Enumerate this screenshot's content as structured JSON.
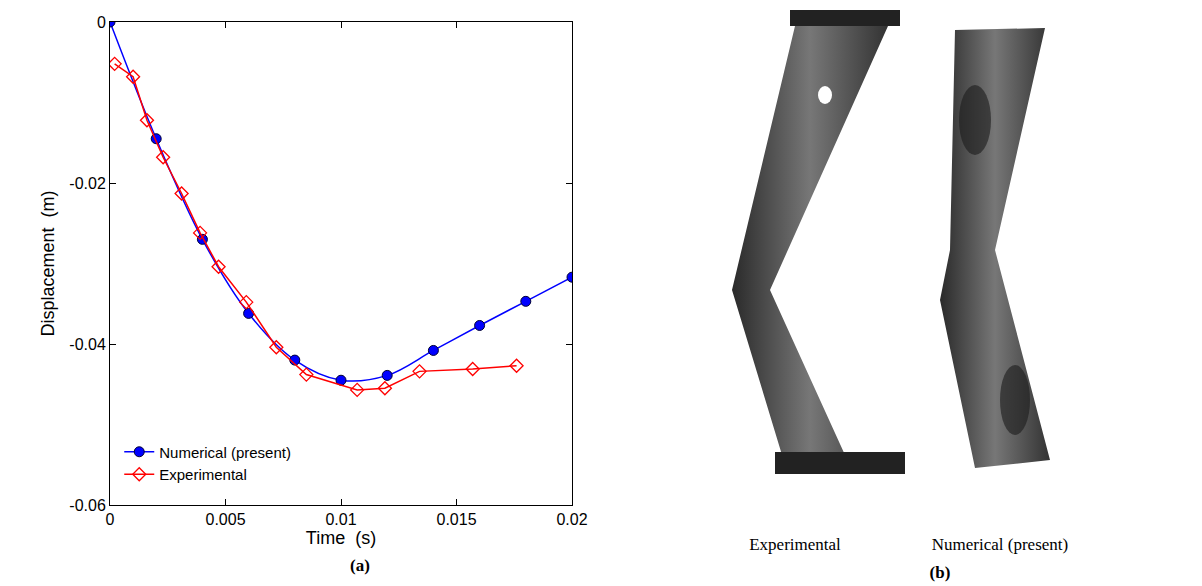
{
  "chart_data": {
    "type": "line",
    "x_label": "Time  (s)",
    "y_label": "Displacement  (m)",
    "xlim": [
      0,
      0.02
    ],
    "xticks": [
      0,
      0.005,
      0.01,
      0.015,
      0.02
    ],
    "ylim": [
      -0.06,
      0
    ],
    "yticks": [
      -0.06,
      -0.04,
      -0.02,
      0
    ],
    "grid": false,
    "legend": "lower left",
    "series": [
      {
        "name": "Numerical (present)",
        "color": "#0000ff",
        "marker": "circle",
        "line_style": "solid",
        "x": [
          0,
          0.002,
          0.004,
          0.006,
          0.008,
          0.01,
          0.012,
          0.014,
          0.016,
          0.018,
          0.02
        ],
        "values": [
          0,
          -0.0145,
          -0.027,
          -0.0362,
          -0.042,
          -0.0445,
          -0.0439,
          -0.0408,
          -0.0377,
          -0.0347,
          -0.0317
        ]
      },
      {
        "name": "Experimental",
        "color": "#ff0000",
        "marker": "diamond-open",
        "line_style": "solid",
        "x": [
          0.0002,
          0.001,
          0.0016,
          0.0023,
          0.0031,
          0.0039,
          0.0047,
          0.0059,
          0.0072,
          0.0085,
          0.0107,
          0.0119,
          0.0134,
          0.0157,
          0.0176
        ],
        "values": [
          -0.0052,
          -0.0068,
          -0.0122,
          -0.0168,
          -0.0213,
          -0.0262,
          -0.0304,
          -0.0348,
          -0.0404,
          -0.0438,
          -0.0457,
          -0.0455,
          -0.0434,
          -0.0431,
          -0.0427
        ]
      }
    ]
  },
  "panel_labels": [
    "(a)",
    "(b)"
  ],
  "image_captions": [
    "Experimental",
    "Numerical (present)"
  ]
}
